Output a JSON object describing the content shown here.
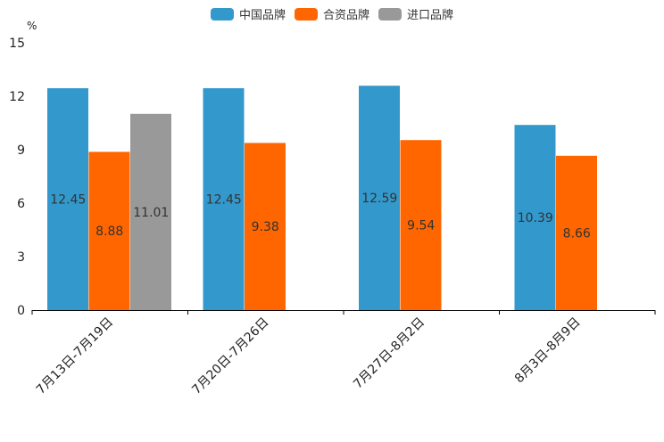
{
  "chart_data": {
    "type": "bar",
    "title": "",
    "xlabel": "",
    "ylabel": "%",
    "ylim": [
      0,
      15
    ],
    "yticks": [
      0,
      3,
      6,
      9,
      12,
      15
    ],
    "grid": false,
    "legend_position": "top-center",
    "categories": [
      "7月13日-7月19日",
      "7月20日-7月26日",
      "7月27日-8月2日",
      "8月3日-8月9日"
    ],
    "series": [
      {
        "name": "中国品牌",
        "color": "#3399CC",
        "values": [
          12.45,
          12.45,
          12.59,
          10.39
        ],
        "labels": [
          "12.45",
          "12.45",
          "12.59",
          "10.39"
        ]
      },
      {
        "name": "合资品牌",
        "color": "#FF6600",
        "values": [
          8.88,
          9.38,
          9.54,
          8.66
        ],
        "labels": [
          "8.88",
          "9.38",
          "9.54",
          "8.66"
        ]
      },
      {
        "name": "进口品牌",
        "color": "#999999",
        "values": [
          11.01,
          null,
          null,
          null
        ],
        "labels": [
          "11.01",
          "",
          "",
          ""
        ]
      }
    ]
  }
}
